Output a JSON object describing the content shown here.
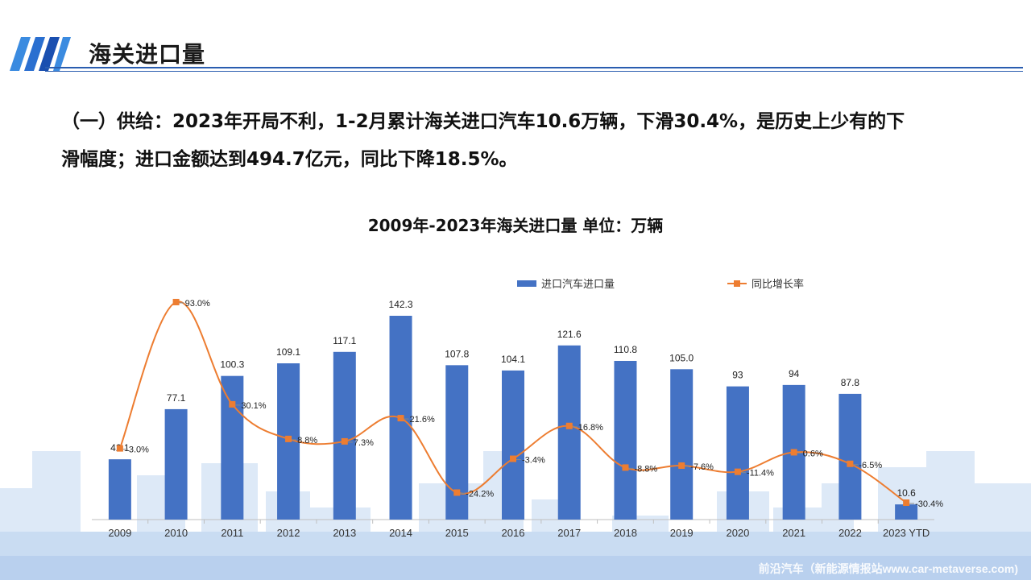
{
  "header": {
    "title": "海关进口量"
  },
  "summary": {
    "line1": "（一）供给：2023年开局不利，1-2月累计海关进口汽车10.6万辆，下滑30.4%，是历史上少有的下",
    "line2": "滑幅度；进口金额达到494.7亿元，同比下降18.5%。"
  },
  "chart_data": {
    "type": "bar",
    "title": "2009年-2023年海关进口量  单位：万辆",
    "categories": [
      "2009",
      "2010",
      "2011",
      "2012",
      "2013",
      "2014",
      "2015",
      "2016",
      "2017",
      "2018",
      "2019",
      "2020",
      "2021",
      "2022",
      "2023 YTD"
    ],
    "series": [
      {
        "name": "进口汽车进口量",
        "type": "bar",
        "color": "#4472c4",
        "values": [
          42.1,
          77.1,
          100.3,
          109.1,
          117.1,
          142.3,
          107.8,
          104.1,
          121.6,
          110.8,
          105.0,
          93,
          94,
          87.8,
          10.6
        ],
        "labels": [
          "42.1",
          "77.1",
          "100.3",
          "109.1",
          "117.1",
          "142.3",
          "107.8",
          "104.1",
          "121.6",
          "110.8",
          "105.0",
          "93",
          "94",
          "87.8",
          "10.6"
        ]
      },
      {
        "name": "同比增长率",
        "type": "line",
        "color": "#ed7d31",
        "values": [
          3.0,
          93.0,
          30.1,
          8.8,
          7.3,
          21.6,
          -24.2,
          -3.4,
          16.8,
          -8.8,
          -7.6,
          -11.4,
          0.6,
          -6.5,
          -30.4
        ],
        "labels": [
          "3.0%",
          "93.0%",
          "30.1%",
          "8.8%",
          "7.3%",
          "21.6%",
          "-24.2%",
          "-3.4%",
          "16.8%",
          "-8.8%",
          "-7.6%",
          "-11.4%",
          "0.6%",
          "-6.5%",
          "-30.4%"
        ]
      }
    ],
    "bar_axis_range": [
      0,
      150
    ],
    "line_axis_range": [
      -40,
      100
    ],
    "grid": false,
    "legend_position": "top"
  },
  "footer": {
    "watermark": "前沿汽车（新能源情报站www.car-metaverse.com)"
  }
}
